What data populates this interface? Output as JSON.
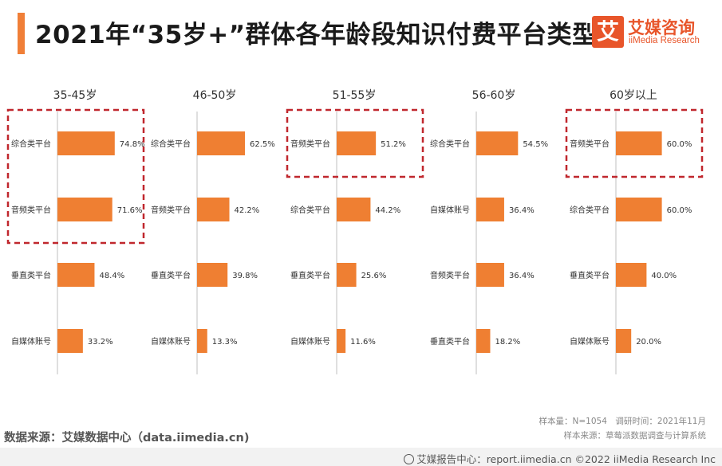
{
  "title": "2021年“35岁+”群体各年龄段知识付费平台类型",
  "logo": {
    "mark": "艾",
    "name_cn": "艾媒咨询",
    "name_en": "iiMedia Research"
  },
  "source_note": "数据来源：艾媒数据中心（data.iimedia.cn)",
  "meta": {
    "sample_and_time": "样本量：N=1054　调研时间：2021年11月",
    "sample_source": "样本来源：草莓派数据调查与计算系统"
  },
  "footer": "艾媒报告中心：report.iimedia.cn  ©2022  iiMedia Research Inc",
  "colors": {
    "bar": "#ef7f32",
    "highlight_border": "#c0272d",
    "title_accent": "#f07f38",
    "logo": "#e8552a"
  },
  "chart_data": [
    {
      "type": "bar",
      "orientation": "horizontal",
      "title": "35-45岁",
      "categories": [
        "综合类平台",
        "音频类平台",
        "垂直类平台",
        "自媒体账号"
      ],
      "values": [
        74.8,
        71.6,
        48.4,
        33.2
      ],
      "unit": "%",
      "highlighted": [
        0,
        1
      ]
    },
    {
      "type": "bar",
      "orientation": "horizontal",
      "title": "46-50岁",
      "categories": [
        "综合类平台",
        "音频类平台",
        "垂直类平台",
        "自媒体账号"
      ],
      "values": [
        62.5,
        42.2,
        39.8,
        13.3
      ],
      "unit": "%",
      "highlighted": []
    },
    {
      "type": "bar",
      "orientation": "horizontal",
      "title": "51-55岁",
      "categories": [
        "音频类平台",
        "综合类平台",
        "垂直类平台",
        "自媒体账号"
      ],
      "values": [
        51.2,
        44.2,
        25.6,
        11.6
      ],
      "unit": "%",
      "highlighted": [
        0
      ]
    },
    {
      "type": "bar",
      "orientation": "horizontal",
      "title": "56-60岁",
      "categories": [
        "综合类平台",
        "自媒体账号",
        "音频类平台",
        "垂直类平台"
      ],
      "values": [
        54.5,
        36.4,
        36.4,
        18.2
      ],
      "unit": "%",
      "highlighted": []
    },
    {
      "type": "bar",
      "orientation": "horizontal",
      "title": "60岁以上",
      "categories": [
        "音频类平台",
        "综合类平台",
        "垂直类平台",
        "自媒体账号"
      ],
      "values": [
        60.0,
        60.0,
        40.0,
        20.0
      ],
      "unit": "%",
      "highlighted": [
        0
      ]
    }
  ]
}
